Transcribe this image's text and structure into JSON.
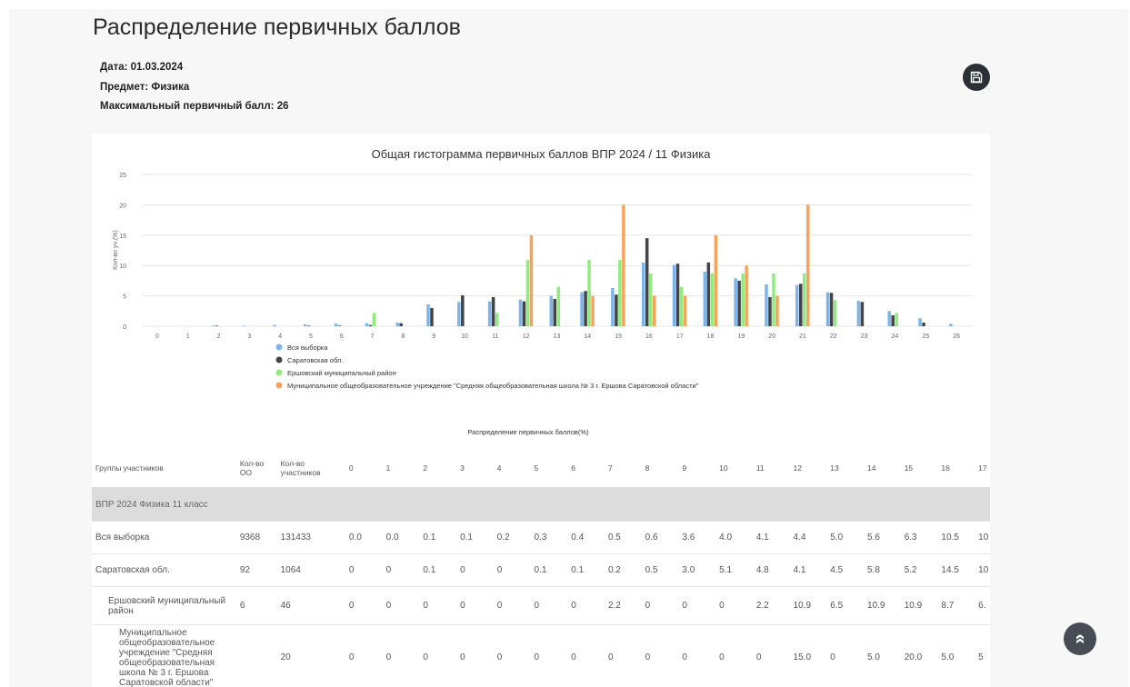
{
  "page": {
    "title": "Распределение первичных баллов"
  },
  "meta": {
    "date": "Дата: 01.03.2024",
    "subject": "Предмет: Физика",
    "max_score": "Максимальный первичный балл: 26"
  },
  "icons": {
    "save": "save-icon",
    "scroll_top": "chevron-double-up-icon"
  },
  "chart_data": {
    "type": "bar",
    "title": "Общая гистограмма первичных баллов ВПР 2024 / 11 Физика",
    "ylabel": "Кол-во уч.(%)",
    "xlabel": "Распределение первичных баллов(%)",
    "categories": [
      "0",
      "1",
      "2",
      "3",
      "4",
      "5",
      "6",
      "7",
      "8",
      "9",
      "10",
      "11",
      "12",
      "13",
      "14",
      "15",
      "16",
      "17",
      "18",
      "19",
      "20",
      "21",
      "22",
      "23",
      "24",
      "25",
      "26"
    ],
    "ylim": [
      0,
      25
    ],
    "yticks": [
      0,
      5,
      10,
      15,
      20,
      25
    ],
    "grid": true,
    "legend": "bottom-left",
    "series": [
      {
        "name": "Вся выборка",
        "color": "#7cb5ec",
        "values": [
          0.0,
          0.0,
          0.1,
          0.1,
          0.2,
          0.3,
          0.4,
          0.5,
          0.6,
          3.6,
          4.0,
          4.1,
          4.4,
          5.0,
          5.6,
          6.3,
          10.5,
          10.1,
          9.0,
          7.9,
          6.9,
          6.8,
          5.6,
          4.2,
          2.5,
          1.3,
          0.4
        ]
      },
      {
        "name": "Саратовская обл.",
        "color": "#434348",
        "values": [
          0,
          0,
          0.1,
          0,
          0,
          0.1,
          0.1,
          0.2,
          0.5,
          3.0,
          5.1,
          4.8,
          4.1,
          4.5,
          5.8,
          5.2,
          14.5,
          10.3,
          10.5,
          7.5,
          4.8,
          7.0,
          5.5,
          4.0,
          1.8,
          0.6,
          0
        ]
      },
      {
        "name": "Ершовский муниципальный район",
        "color": "#90ed7d",
        "values": [
          0,
          0,
          0,
          0,
          0,
          0,
          0,
          2.2,
          0,
          0,
          0,
          2.2,
          10.9,
          6.5,
          10.9,
          10.9,
          8.7,
          6.5,
          8.7,
          8.7,
          8.7,
          8.7,
          4.3,
          0,
          2.2,
          0,
          0
        ]
      },
      {
        "name": "Муниципальное общеобразовательное учреждение \"Средняя общеобразовательная школа № 3 г. Ершова Саратовской области\"",
        "color": "#f7a35c",
        "values": [
          0,
          0,
          0,
          0,
          0,
          0,
          0,
          0,
          0,
          0,
          0,
          0,
          15.0,
          0,
          5.0,
          20.0,
          5.0,
          5.0,
          15.0,
          10.0,
          5.0,
          20.0,
          0,
          0,
          0,
          0,
          0
        ]
      }
    ]
  },
  "table": {
    "headers": [
      "Группы участников",
      "Кол-во ОО",
      "Кол-во участников",
      "0",
      "1",
      "2",
      "3",
      "4",
      "5",
      "6",
      "7",
      "8",
      "9",
      "10",
      "11",
      "12",
      "13",
      "14",
      "15",
      "16",
      "17"
    ],
    "group_label": "ВПР 2024 Физика 11 класс",
    "rows": [
      {
        "name": "Вся выборка",
        "oo": "9368",
        "count": "131433",
        "values": [
          "0.0",
          "0.0",
          "0.1",
          "0.1",
          "0.2",
          "0.3",
          "0.4",
          "0.5",
          "0.6",
          "3.6",
          "4.0",
          "4.1",
          "4.4",
          "5.0",
          "5.6",
          "6.3",
          "10.5",
          "10"
        ]
      },
      {
        "name": "Саратовская обл.",
        "oo": "92",
        "count": "1064",
        "values": [
          "0",
          "0",
          "0.1",
          "0",
          "0",
          "0.1",
          "0.1",
          "0.2",
          "0.5",
          "3.0",
          "5.1",
          "4.8",
          "4.1",
          "4.5",
          "5.8",
          "5.2",
          "14.5",
          "10"
        ]
      },
      {
        "name": "Ершовский муниципальный район",
        "oo": "6",
        "count": "46",
        "values": [
          "0",
          "0",
          "0",
          "0",
          "0",
          "0",
          "0",
          "2.2",
          "0",
          "0",
          "0",
          "2.2",
          "10.9",
          "6.5",
          "10.9",
          "10.9",
          "8.7",
          "6."
        ]
      },
      {
        "name": "Муниципальное общеобразовательное учреждение \"Средняя общеобразовательная школа № 3 г. Ершова Саратовской области\"",
        "oo": "",
        "count": "20",
        "values": [
          "0",
          "0",
          "0",
          "0",
          "0",
          "0",
          "0",
          "0",
          "0",
          "0",
          "0",
          "0",
          "15.0",
          "0",
          "5.0",
          "20.0",
          "5.0",
          "5"
        ]
      }
    ]
  }
}
